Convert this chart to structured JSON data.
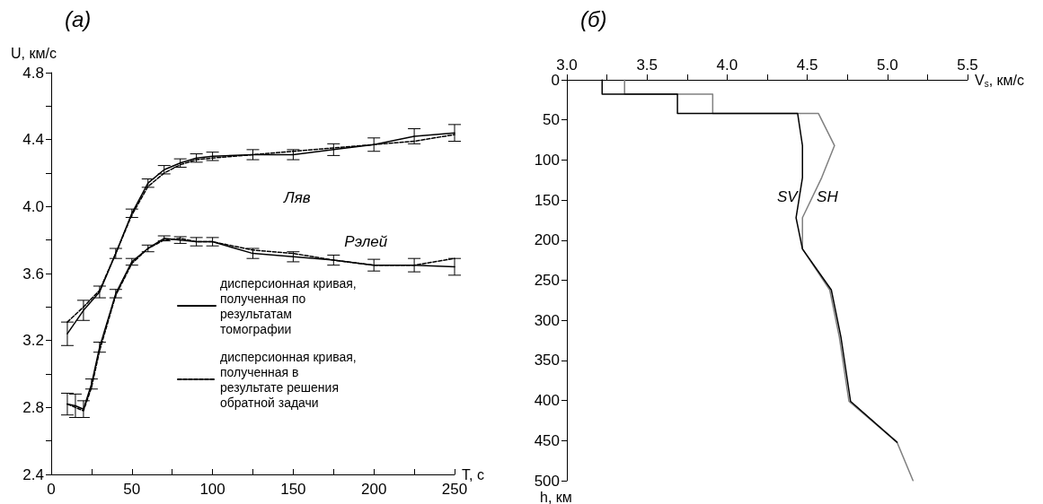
{
  "chart_data": [
    {
      "type": "line",
      "title": "(а)",
      "xlabel": "T, с",
      "ylabel": "U, км/с",
      "xlim": [
        0,
        250
      ],
      "xticks": [
        0,
        {
          "value": 25,
          "label": null
        },
        50,
        {
          "value": 75,
          "label": null
        },
        100,
        {
          "value": 125,
          "label": null
        },
        150,
        {
          "value": 175,
          "label": null
        },
        200,
        {
          "value": 225,
          "label": null
        },
        250
      ],
      "ylim": [
        2.4,
        4.8
      ],
      "yticks": [
        2.4,
        {
          "value": 2.6,
          "label": null
        },
        2.8,
        {
          "value": 3.0,
          "label": null
        },
        3.2,
        {
          "value": 3.4,
          "label": null
        },
        3.6,
        {
          "value": 3.8,
          "label": null
        },
        {
          "value": 4.0,
          "label": "4.0"
        },
        {
          "value": 4.2,
          "label": null
        },
        4.4,
        {
          "value": 4.6,
          "label": null
        },
        4.8
      ],
      "marker": "none",
      "legend": "bottom right",
      "series": [
        {
          "name": "дисперсионная кривая, полученная по результатам томографии",
          "color": "#000000",
          "line_style": "solid",
          "x": [
            10,
            20,
            30,
            40,
            50,
            60,
            70,
            80,
            90,
            100,
            125,
            150,
            175,
            200,
            225,
            250
          ],
          "values": [
            3.24,
            3.38,
            3.49,
            3.72,
            3.96,
            4.14,
            4.22,
            4.26,
            4.29,
            4.3,
            4.31,
            4.31,
            4.34,
            4.37,
            4.42,
            4.44
          ],
          "errors": [
            0.07,
            0.06,
            0.035,
            0.03,
            0.025,
            0.025,
            0.025,
            0.025,
            0.025,
            0.025,
            0.03,
            0.03,
            0.035,
            0.04,
            0.045,
            0.05
          ]
        },
        {
          "name": "дисперсионная кривая, полученная в результате решения обратной задачи",
          "color": "#000000",
          "line_style": "dashed",
          "x": [
            10,
            20,
            30,
            40,
            50,
            60,
            70,
            80,
            90,
            100,
            125,
            150,
            175,
            200,
            225,
            250
          ],
          "values": [
            3.31,
            3.4,
            3.5,
            3.72,
            3.95,
            4.12,
            4.2,
            4.25,
            4.28,
            4.29,
            4.31,
            4.33,
            4.35,
            4.37,
            4.39,
            4.43
          ]
        },
        {
          "color": "#000000",
          "line_style": "solid",
          "x": [
            10,
            15,
            20,
            25,
            30,
            40,
            50,
            60,
            70,
            80,
            90,
            100,
            125,
            150,
            175,
            200,
            225,
            250
          ],
          "values": [
            2.82,
            2.81,
            2.79,
            2.94,
            3.16,
            3.48,
            3.67,
            3.75,
            3.81,
            3.8,
            3.79,
            3.79,
            3.72,
            3.7,
            3.68,
            3.65,
            3.65,
            3.64
          ],
          "errors": [
            0.065,
            0.07,
            0.05,
            0.03,
            0.03,
            0.025,
            0.02,
            0.02,
            0.015,
            0.02,
            0.025,
            0.025,
            0.03,
            0.03,
            0.03,
            0.035,
            0.04,
            0.05
          ]
        },
        {
          "color": "#000000",
          "line_style": "dashed",
          "x": [
            10,
            15,
            20,
            25,
            30,
            40,
            50,
            60,
            70,
            80,
            90,
            100,
            125,
            150,
            175,
            200,
            225,
            250
          ],
          "values": [
            2.82,
            2.8,
            2.78,
            2.92,
            3.14,
            3.47,
            3.66,
            3.75,
            3.8,
            3.81,
            3.79,
            3.79,
            3.74,
            3.72,
            3.68,
            3.65,
            3.65,
            3.69
          ]
        }
      ],
      "annotations": [
        "Ляв",
        "Рэлей"
      ]
    },
    {
      "type": "line",
      "title": "(б)",
      "xlabel": "V$_{s}$, км/с",
      "ylabel": "h, км",
      "xlim": [
        3.0,
        5.5
      ],
      "xticks": [
        {
          "value": 3.0,
          "label": "3.0"
        },
        {
          "value": 3.25,
          "label": null
        },
        3.5,
        {
          "value": 3.75,
          "label": null
        },
        {
          "value": 4.0,
          "label": "4.0"
        },
        {
          "value": 4.25,
          "label": null
        },
        4.5,
        {
          "value": 4.75,
          "label": null
        },
        {
          "value": 5.0,
          "label": "5.0"
        },
        {
          "value": 5.25,
          "label": null
        },
        5.5
      ],
      "ylim": [
        500,
        0
      ],
      "yticks": [
        0,
        50,
        100,
        150,
        200,
        250,
        300,
        350,
        400,
        450,
        500
      ],
      "marker": "none",
      "series": [
        {
          "color": "#808080",
          "line_style": "solid",
          "x": [
            3.36,
            3.36,
            3.91,
            3.91,
            4.57,
            4.67,
            4.59,
            4.47,
            4.47,
            4.64,
            4.7,
            4.76,
            5.06,
            5.16
          ],
          "values": [
            0,
            18,
            18,
            42,
            42,
            82,
            122,
            172,
            211,
            262,
            321,
            401,
            452,
            500
          ]
        },
        {
          "color": "#000000",
          "line_style": "solid",
          "x": [
            3.22,
            3.22,
            3.69,
            3.69,
            4.44,
            4.47,
            4.47,
            4.43,
            4.47,
            4.65,
            4.71,
            4.77,
            5.06
          ],
          "values": [
            0,
            18,
            18,
            42,
            42,
            82,
            122,
            172,
            211,
            262,
            321,
            401,
            452
          ]
        }
      ],
      "annotations": [
        "SV",
        "SH"
      ]
    }
  ]
}
